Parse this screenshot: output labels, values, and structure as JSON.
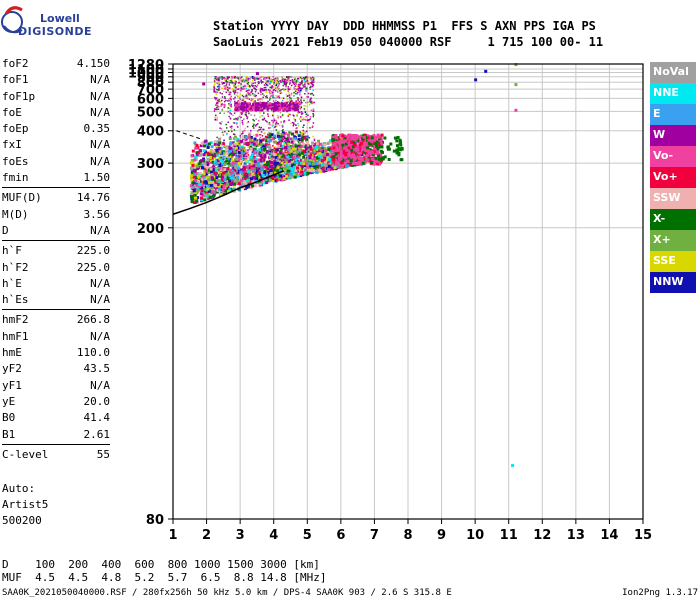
{
  "logo": {
    "line1": "Lowell",
    "line2": "DIGISONDE"
  },
  "header": {
    "line1": "Station YYYY DAY  DDD HHMMSS P1  FFS S AXN PPS IGA PS",
    "line2": "SaoLuis 2021 Feb19 050 040000 RSF     1 715 100 00- 11"
  },
  "params_group1": [
    {
      "label": "foF2",
      "value": "4.150"
    },
    {
      "label": "foF1",
      "value": "N/A"
    },
    {
      "label": "foF1p",
      "value": "N/A"
    },
    {
      "label": "foE",
      "value": "N/A"
    },
    {
      "label": "foEp",
      "value": "0.35"
    },
    {
      "label": "fxI",
      "value": "N/A"
    },
    {
      "label": "foEs",
      "value": "N/A"
    },
    {
      "label": "fmin",
      "value": "1.50"
    }
  ],
  "params_group2": [
    {
      "label": "MUF(D)",
      "value": "14.76"
    },
    {
      "label": "M(D)",
      "value": "3.56"
    },
    {
      "label": "D",
      "value": "N/A"
    }
  ],
  "params_group3": [
    {
      "label": "h`F",
      "value": "225.0"
    },
    {
      "label": "h`F2",
      "value": "225.0"
    },
    {
      "label": "h`E",
      "value": "N/A"
    },
    {
      "label": "h`Es",
      "value": "N/A"
    }
  ],
  "params_group4": [
    {
      "label": "hmF2",
      "value": "266.8"
    },
    {
      "label": "hmF1",
      "value": "N/A"
    },
    {
      "label": "hmE",
      "value": "110.0"
    },
    {
      "label": "yF2",
      "value": "43.5"
    },
    {
      "label": "yF1",
      "value": "N/A"
    },
    {
      "label": "yE",
      "value": "20.0"
    },
    {
      "label": "B0",
      "value": "41.4"
    },
    {
      "label": "B1",
      "value": "2.61"
    }
  ],
  "params_group5": [
    {
      "label": "C-level",
      "value": "55"
    }
  ],
  "auto": {
    "line1": "Auto:",
    "line2": "Artist5",
    "line3": "500200"
  },
  "dtable": {
    "line1": "D    100  200  400  600  800 1000 1500 3000 [km]",
    "line2": "MUF  4.5  4.5  4.8  5.2  5.7  6.5  8.8 14.8 [MHz]"
  },
  "footer": "SAA0K_2021050040000.RSF / 280fx256h 50 kHz 5.0 km / DPS-4 SAA0K 903 / 2.6 S 315.8 E",
  "version": "Ion2Png 1.3.17",
  "legend": [
    {
      "label": "NoVal",
      "color": "#a0a0a0"
    },
    {
      "label": "NNE",
      "color": "#00e8f0"
    },
    {
      "label": "E",
      "color": "#3aa0f0"
    },
    {
      "label": "W",
      "color": "#a000a0"
    },
    {
      "label": "Vo-",
      "color": "#f040a0"
    },
    {
      "label": "Vo+",
      "color": "#f0003c"
    },
    {
      "label": "SSW",
      "color": "#f0b0b0"
    },
    {
      "label": "X-",
      "color": "#007000"
    },
    {
      "label": "X+",
      "color": "#70b040"
    },
    {
      "label": "SSE",
      "color": "#d8d800"
    },
    {
      "label": "NNW",
      "color": "#1010b0"
    }
  ],
  "chart_data": {
    "type": "scatter",
    "x_ticks": [
      1,
      2,
      3,
      4,
      5,
      6,
      7,
      8,
      9,
      10,
      11,
      12,
      13,
      14,
      15
    ],
    "y_ticks": [
      80,
      200,
      300,
      400,
      500,
      600,
      700,
      800,
      900,
      1000,
      1100,
      1280
    ],
    "xlim": [
      1,
      15
    ],
    "ylim": [
      80,
      1280
    ],
    "y_scale": "reciprocal",
    "grid": true,
    "trace": {
      "color": "#000000",
      "x": [
        1.0,
        1.5,
        2.0,
        2.5,
        3.0,
        3.5,
        4.0,
        4.3
      ],
      "y": [
        215,
        222,
        230,
        240,
        252,
        262,
        275,
        283
      ]
    },
    "isolated_points": [
      {
        "x": 10.3,
        "y": 1045,
        "color": "#1010b0"
      },
      {
        "x": 10.0,
        "y": 850,
        "color": "#1010b0"
      },
      {
        "x": 11.2,
        "y": 1275,
        "color": "#70b040"
      },
      {
        "x": 11.2,
        "y": 770,
        "color": "#70b040"
      },
      {
        "x": 11.2,
        "y": 510,
        "color": "#f040a0"
      },
      {
        "x": 11.1,
        "y": 90,
        "color": "#00e8f0"
      },
      {
        "x": 1.9,
        "y": 780,
        "color": "#a000a0"
      },
      {
        "x": 3.5,
        "y": 985,
        "color": "#a000a0"
      }
    ]
  }
}
